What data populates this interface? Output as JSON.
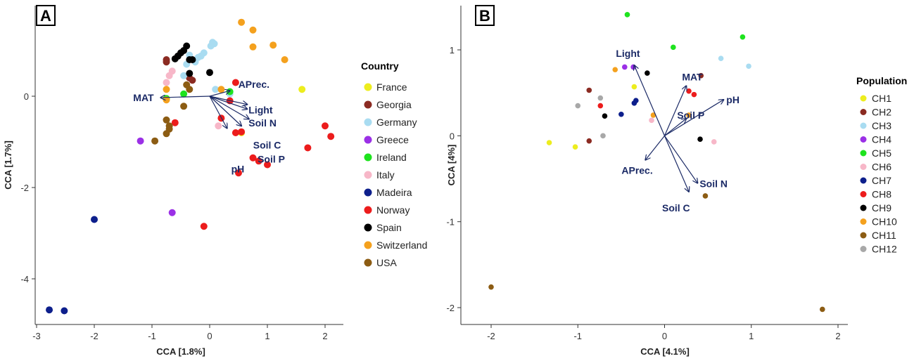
{
  "chart_data": [
    {
      "panel": "A",
      "type": "scatter",
      "xlabel": "CCA [1.8%]",
      "ylabel": "CCA [1.7%]",
      "xticks": [
        -3,
        -2,
        -1,
        0,
        1,
        2
      ],
      "yticks": [
        0,
        -2,
        -4
      ],
      "xticklabels": [
        "-3",
        "-2",
        "-1",
        "0",
        "1",
        "2"
      ],
      "yticklabels": [
        "0",
        "-2",
        "-4"
      ],
      "legend": {
        "title": "Country",
        "position": "right"
      },
      "series": [
        {
          "name": "France",
          "color": "#eded1e",
          "points": [
            [
              1.6,
              0.15
            ],
            [
              0.55,
              -0.8
            ]
          ]
        },
        {
          "name": "Georgia",
          "color": "#8b2b22",
          "points": [
            [
              -0.75,
              0.8
            ],
            [
              -0.75,
              0.75
            ],
            [
              -0.35,
              0.4
            ],
            [
              -0.3,
              0.35
            ]
          ]
        },
        {
          "name": "Germany",
          "color": "#a9dcf1",
          "points": [
            [
              0.05,
              1.18
            ],
            [
              0.08,
              1.15
            ],
            [
              0.02,
              1.1
            ],
            [
              -0.1,
              0.95
            ],
            [
              -0.15,
              0.88
            ],
            [
              -0.2,
              0.85
            ],
            [
              -0.25,
              0.75
            ],
            [
              -0.35,
              0.9
            ],
            [
              -0.4,
              0.7
            ],
            [
              -0.45,
              0.45
            ],
            [
              0.1,
              0.15
            ],
            [
              0.35,
              0.05
            ]
          ]
        },
        {
          "name": "Greece",
          "color": "#9b30e6",
          "points": [
            [
              -1.2,
              -0.98
            ],
            [
              -0.65,
              -2.55
            ]
          ]
        },
        {
          "name": "Ireland",
          "color": "#1ee31e",
          "points": [
            [
              -0.75,
              -0.05
            ],
            [
              -0.45,
              0.05
            ],
            [
              0.35,
              0.1
            ]
          ]
        },
        {
          "name": "Italy",
          "color": "#f7b7c8",
          "points": [
            [
              -0.65,
              0.55
            ],
            [
              -0.7,
              0.45
            ],
            [
              -0.75,
              0.3
            ],
            [
              0.15,
              -0.65
            ]
          ]
        },
        {
          "name": "Madeira",
          "color": "#0d1f8c",
          "points": [
            [
              -2.0,
              -2.7
            ],
            [
              -2.78,
              -4.68
            ],
            [
              -2.52,
              -4.7
            ]
          ]
        },
        {
          "name": "Norway",
          "color": "#ec1c1c",
          "points": [
            [
              2.0,
              -0.65
            ],
            [
              2.1,
              -0.88
            ],
            [
              1.7,
              -1.13
            ],
            [
              0.45,
              0.3
            ],
            [
              0.35,
              -0.1
            ],
            [
              0.2,
              -0.48
            ],
            [
              0.45,
              -0.8
            ],
            [
              0.55,
              -0.78
            ],
            [
              0.75,
              -1.35
            ],
            [
              0.85,
              -1.42
            ],
            [
              1.0,
              -1.5
            ],
            [
              0.5,
              -1.68
            ],
            [
              -0.1,
              -2.85
            ],
            [
              -0.6,
              -0.58
            ]
          ]
        },
        {
          "name": "Spain",
          "color": "#000000",
          "points": [
            [
              -0.4,
              1.1
            ],
            [
              -0.45,
              1.0
            ],
            [
              -0.5,
              0.95
            ],
            [
              -0.55,
              0.88
            ],
            [
              -0.6,
              0.82
            ],
            [
              -0.35,
              0.8
            ],
            [
              -0.3,
              0.8
            ],
            [
              -0.35,
              0.5
            ],
            [
              0.0,
              0.52
            ]
          ]
        },
        {
          "name": "Switzerland",
          "color": "#f4a11e",
          "points": [
            [
              0.55,
              1.62
            ],
            [
              0.75,
              1.45
            ],
            [
              0.75,
              1.08
            ],
            [
              1.1,
              1.12
            ],
            [
              1.3,
              0.8
            ],
            [
              0.2,
              0.15
            ],
            [
              -0.75,
              0.15
            ],
            [
              -0.75,
              -0.08
            ]
          ]
        },
        {
          "name": "USA",
          "color": "#8c5c13",
          "points": [
            [
              -0.4,
              0.25
            ],
            [
              -0.35,
              0.15
            ],
            [
              -0.45,
              -0.22
            ],
            [
              -0.75,
              -0.52
            ],
            [
              -0.7,
              -0.65
            ],
            [
              -0.7,
              -0.72
            ],
            [
              -0.75,
              -0.82
            ],
            [
              -0.95,
              -0.98
            ]
          ]
        }
      ],
      "vectors": [
        {
          "label": "MAT",
          "x": -0.85,
          "y": -0.03
        },
        {
          "label": "APrec.",
          "x": 0.35,
          "y": 0.12
        },
        {
          "label": "Light",
          "x": 0.65,
          "y": -0.18
        },
        {
          "label": "Soil N",
          "x": 0.65,
          "y": -0.28
        },
        {
          "label": "Soil C",
          "x": 0.68,
          "y": -0.5
        },
        {
          "label": "pH",
          "x": 0.3,
          "y": -0.7
        },
        {
          "label": "Soil P",
          "x": 0.55,
          "y": -0.65
        }
      ]
    },
    {
      "panel": "B",
      "type": "scatter",
      "xlabel": "CCA [4.1%]",
      "ylabel": "CCA [4%]",
      "xticks": [
        -2,
        -1,
        0,
        1,
        2
      ],
      "yticks": [
        1,
        0,
        -1,
        -2
      ],
      "xticklabels": [
        "-2",
        "-1",
        "0",
        "1",
        "2"
      ],
      "yticklabels": [
        "1",
        "0",
        "-1",
        "-2"
      ],
      "legend": {
        "title": "Population",
        "position": "right"
      },
      "series": [
        {
          "name": "CH1",
          "color": "#eded1e",
          "points": [
            [
              -1.33,
              -0.08
            ],
            [
              -1.03,
              -0.13
            ],
            [
              -0.35,
              0.57
            ]
          ]
        },
        {
          "name": "CH2",
          "color": "#8b2b22",
          "points": [
            [
              -0.87,
              0.53
            ],
            [
              -0.87,
              -0.06
            ],
            [
              0.42,
              0.7
            ]
          ]
        },
        {
          "name": "CH3",
          "color": "#a9dcf1",
          "points": [
            [
              0.65,
              0.9
            ],
            [
              0.97,
              0.81
            ]
          ]
        },
        {
          "name": "CH4",
          "color": "#9b30e6",
          "points": [
            [
              -0.46,
              0.8
            ],
            [
              -0.36,
              0.8
            ]
          ]
        },
        {
          "name": "CH5",
          "color": "#1ee31e",
          "points": [
            [
              -0.43,
              1.41
            ],
            [
              0.1,
              1.03
            ],
            [
              0.9,
              1.15
            ]
          ]
        },
        {
          "name": "CH6",
          "color": "#f7b7c8",
          "points": [
            [
              -0.15,
              0.18
            ],
            [
              0.57,
              -0.07
            ]
          ]
        },
        {
          "name": "CH7",
          "color": "#0d1f8c",
          "points": [
            [
              -0.5,
              0.25
            ],
            [
              -0.35,
              0.38
            ],
            [
              -0.33,
              0.41
            ]
          ]
        },
        {
          "name": "CH8",
          "color": "#ec1c1c",
          "points": [
            [
              -0.74,
              0.35
            ],
            [
              0.28,
              0.52
            ],
            [
              0.34,
              0.48
            ]
          ]
        },
        {
          "name": "CH9",
          "color": "#000000",
          "points": [
            [
              -0.2,
              0.73
            ],
            [
              -0.69,
              0.23
            ],
            [
              0.41,
              -0.04
            ]
          ]
        },
        {
          "name": "CH10",
          "color": "#f4a11e",
          "points": [
            [
              -0.57,
              0.77
            ],
            [
              -0.13,
              0.24
            ],
            [
              0.28,
              0.24
            ]
          ]
        },
        {
          "name": "CH11",
          "color": "#8c5c13",
          "points": [
            [
              -2.0,
              -1.76
            ],
            [
              1.82,
              -2.02
            ],
            [
              0.47,
              -0.7
            ]
          ]
        },
        {
          "name": "CH12",
          "color": "#a8a8a8",
          "points": [
            [
              -1.0,
              0.35
            ],
            [
              -0.74,
              0.44
            ],
            [
              -0.71,
              0.0
            ]
          ]
        }
      ],
      "vectors": [
        {
          "label": "Light",
          "x": -0.35,
          "y": 0.82
        },
        {
          "label": "MAT",
          "x": 0.25,
          "y": 0.58
        },
        {
          "label": "pH",
          "x": 0.68,
          "y": 0.42
        },
        {
          "label": "Soil P",
          "x": 0.25,
          "y": 0.2
        },
        {
          "label": "APrec.",
          "x": -0.22,
          "y": -0.28
        },
        {
          "label": "Soil N",
          "x": 0.38,
          "y": -0.55
        },
        {
          "label": "Soil C",
          "x": 0.28,
          "y": -0.65
        }
      ]
    }
  ],
  "colors": {
    "arrow": "#1b2a66",
    "axis": "#333333"
  }
}
